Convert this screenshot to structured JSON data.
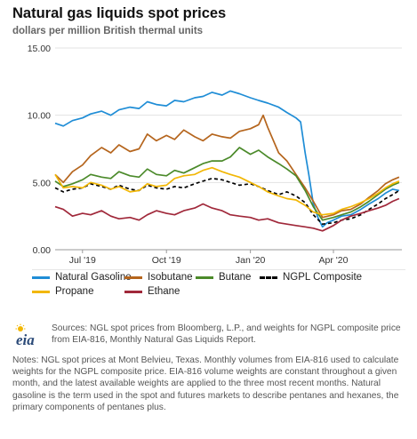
{
  "title": "Natural gas liquids spot prices",
  "subtitle": "dollars per million British thermal units",
  "chart_data": {
    "type": "line",
    "ylim": [
      0,
      15
    ],
    "yticks": [
      "0.00",
      "5.00",
      "10.00",
      "15.00"
    ],
    "xticks": [
      {
        "label": "Jul '19",
        "date": "2019-07-01"
      },
      {
        "label": "Oct '19",
        "date": "2019-10-01"
      },
      {
        "label": "Jan '20",
        "date": "2020-01-01"
      },
      {
        "label": "Apr '20",
        "date": "2020-04-01"
      }
    ],
    "xrange": [
      "2019-06-01",
      "2020-06-15"
    ],
    "grid": "horizontal",
    "legend_position": "bottom",
    "series": [
      {
        "name": "Natural Gasoline",
        "color": "#1f8dd6",
        "dash": false,
        "points": [
          [
            "2019-06-01",
            9.4
          ],
          [
            "2019-06-10",
            9.2
          ],
          [
            "2019-06-20",
            9.6
          ],
          [
            "2019-07-01",
            9.8
          ],
          [
            "2019-07-10",
            10.1
          ],
          [
            "2019-07-22",
            10.3
          ],
          [
            "2019-08-01",
            10.0
          ],
          [
            "2019-08-10",
            10.4
          ],
          [
            "2019-08-22",
            10.6
          ],
          [
            "2019-09-01",
            10.5
          ],
          [
            "2019-09-10",
            11.0
          ],
          [
            "2019-09-20",
            10.8
          ],
          [
            "2019-10-01",
            10.7
          ],
          [
            "2019-10-10",
            11.1
          ],
          [
            "2019-10-20",
            11.0
          ],
          [
            "2019-11-01",
            11.3
          ],
          [
            "2019-11-10",
            11.4
          ],
          [
            "2019-11-20",
            11.7
          ],
          [
            "2019-12-01",
            11.5
          ],
          [
            "2019-12-10",
            11.8
          ],
          [
            "2019-12-20",
            11.6
          ],
          [
            "2020-01-01",
            11.3
          ],
          [
            "2020-01-10",
            11.1
          ],
          [
            "2020-01-20",
            10.9
          ],
          [
            "2020-02-01",
            10.6
          ],
          [
            "2020-02-10",
            10.2
          ],
          [
            "2020-02-20",
            9.8
          ],
          [
            "2020-02-25",
            9.5
          ],
          [
            "2020-03-01",
            7.2
          ],
          [
            "2020-03-05",
            5.6
          ],
          [
            "2020-03-10",
            3.4
          ],
          [
            "2020-03-15",
            2.4
          ],
          [
            "2020-03-20",
            1.7
          ],
          [
            "2020-03-25",
            2.0
          ],
          [
            "2020-04-01",
            2.2
          ],
          [
            "2020-04-10",
            2.5
          ],
          [
            "2020-04-20",
            2.6
          ],
          [
            "2020-05-01",
            3.0
          ],
          [
            "2020-05-10",
            3.4
          ],
          [
            "2020-05-20",
            3.8
          ],
          [
            "2020-05-28",
            4.2
          ],
          [
            "2020-06-05",
            4.5
          ],
          [
            "2020-06-12",
            4.4
          ]
        ]
      },
      {
        "name": "Isobutane",
        "color": "#b5651d",
        "dash": false,
        "points": [
          [
            "2019-06-01",
            5.6
          ],
          [
            "2019-06-10",
            5.0
          ],
          [
            "2019-06-20",
            5.8
          ],
          [
            "2019-07-01",
            6.3
          ],
          [
            "2019-07-10",
            7.0
          ],
          [
            "2019-07-22",
            7.6
          ],
          [
            "2019-08-01",
            7.2
          ],
          [
            "2019-08-10",
            7.8
          ],
          [
            "2019-08-22",
            7.3
          ],
          [
            "2019-09-01",
            7.5
          ],
          [
            "2019-09-10",
            8.6
          ],
          [
            "2019-09-20",
            8.1
          ],
          [
            "2019-10-01",
            8.5
          ],
          [
            "2019-10-10",
            8.2
          ],
          [
            "2019-10-20",
            8.9
          ],
          [
            "2019-11-01",
            8.4
          ],
          [
            "2019-11-10",
            8.1
          ],
          [
            "2019-11-20",
            8.6
          ],
          [
            "2019-12-01",
            8.4
          ],
          [
            "2019-12-10",
            8.3
          ],
          [
            "2019-12-20",
            8.8
          ],
          [
            "2020-01-01",
            9.0
          ],
          [
            "2020-01-10",
            9.3
          ],
          [
            "2020-01-15",
            10.0
          ],
          [
            "2020-01-20",
            9.1
          ],
          [
            "2020-02-01",
            7.2
          ],
          [
            "2020-02-10",
            6.6
          ],
          [
            "2020-02-20",
            5.6
          ],
          [
            "2020-03-01",
            4.6
          ],
          [
            "2020-03-10",
            3.6
          ],
          [
            "2020-03-20",
            2.4
          ],
          [
            "2020-04-01",
            2.6
          ],
          [
            "2020-04-10",
            2.9
          ],
          [
            "2020-04-20",
            3.0
          ],
          [
            "2020-05-01",
            3.4
          ],
          [
            "2020-05-10",
            3.9
          ],
          [
            "2020-05-20",
            4.4
          ],
          [
            "2020-05-28",
            4.9
          ],
          [
            "2020-06-05",
            5.2
          ],
          [
            "2020-06-12",
            5.4
          ]
        ]
      },
      {
        "name": "Butane",
        "color": "#4b8a2a",
        "dash": false,
        "points": [
          [
            "2019-06-01",
            5.1
          ],
          [
            "2019-06-10",
            4.7
          ],
          [
            "2019-06-20",
            4.9
          ],
          [
            "2019-07-01",
            5.2
          ],
          [
            "2019-07-10",
            5.6
          ],
          [
            "2019-07-22",
            5.4
          ],
          [
            "2019-08-01",
            5.3
          ],
          [
            "2019-08-10",
            5.8
          ],
          [
            "2019-08-22",
            5.5
          ],
          [
            "2019-09-01",
            5.4
          ],
          [
            "2019-09-10",
            6.0
          ],
          [
            "2019-09-20",
            5.6
          ],
          [
            "2019-10-01",
            5.5
          ],
          [
            "2019-10-10",
            5.9
          ],
          [
            "2019-10-20",
            5.7
          ],
          [
            "2019-11-01",
            6.1
          ],
          [
            "2019-11-10",
            6.4
          ],
          [
            "2019-11-20",
            6.6
          ],
          [
            "2019-12-01",
            6.6
          ],
          [
            "2019-12-10",
            6.9
          ],
          [
            "2019-12-20",
            7.6
          ],
          [
            "2020-01-01",
            7.1
          ],
          [
            "2020-01-10",
            7.4
          ],
          [
            "2020-01-20",
            6.9
          ],
          [
            "2020-02-01",
            6.4
          ],
          [
            "2020-02-10",
            6.0
          ],
          [
            "2020-02-20",
            5.5
          ],
          [
            "2020-03-01",
            4.4
          ],
          [
            "2020-03-10",
            3.2
          ],
          [
            "2020-03-20",
            2.2
          ],
          [
            "2020-04-01",
            2.4
          ],
          [
            "2020-04-10",
            2.6
          ],
          [
            "2020-04-20",
            2.8
          ],
          [
            "2020-05-01",
            3.2
          ],
          [
            "2020-05-10",
            3.6
          ],
          [
            "2020-05-20",
            4.1
          ],
          [
            "2020-05-28",
            4.5
          ],
          [
            "2020-06-05",
            4.8
          ],
          [
            "2020-06-12",
            5.0
          ]
        ]
      },
      {
        "name": "NGPL Composite",
        "color": "#000000",
        "dash": true,
        "points": [
          [
            "2019-06-01",
            4.6
          ],
          [
            "2019-06-10",
            4.3
          ],
          [
            "2019-06-20",
            4.5
          ],
          [
            "2019-07-01",
            4.6
          ],
          [
            "2019-07-10",
            4.9
          ],
          [
            "2019-07-22",
            4.7
          ],
          [
            "2019-08-01",
            4.5
          ],
          [
            "2019-08-10",
            4.8
          ],
          [
            "2019-08-22",
            4.5
          ],
          [
            "2019-09-01",
            4.4
          ],
          [
            "2019-09-10",
            4.8
          ],
          [
            "2019-09-20",
            4.6
          ],
          [
            "2019-10-01",
            4.5
          ],
          [
            "2019-10-10",
            4.7
          ],
          [
            "2019-10-20",
            4.6
          ],
          [
            "2019-11-01",
            4.9
          ],
          [
            "2019-11-10",
            5.1
          ],
          [
            "2019-11-20",
            5.3
          ],
          [
            "2019-12-01",
            5.2
          ],
          [
            "2019-12-10",
            5.0
          ],
          [
            "2019-12-20",
            4.8
          ],
          [
            "2020-01-01",
            4.9
          ],
          [
            "2020-01-10",
            4.7
          ],
          [
            "2020-01-20",
            4.4
          ],
          [
            "2020-02-01",
            4.1
          ],
          [
            "2020-02-10",
            4.3
          ],
          [
            "2020-02-20",
            4.0
          ],
          [
            "2020-03-01",
            3.5
          ],
          [
            "2020-03-10",
            2.6
          ],
          [
            "2020-03-20",
            1.9
          ],
          [
            "2020-04-01",
            2.0
          ],
          [
            "2020-04-10",
            2.2
          ],
          [
            "2020-04-20",
            2.3
          ],
          [
            "2020-05-01",
            2.6
          ],
          [
            "2020-05-10",
            3.0
          ],
          [
            "2020-05-20",
            3.4
          ],
          [
            "2020-05-28",
            3.8
          ],
          [
            "2020-06-05",
            4.1
          ],
          [
            "2020-06-12",
            4.4
          ]
        ]
      },
      {
        "name": "Propane",
        "color": "#f2b705",
        "dash": false,
        "points": [
          [
            "2019-06-01",
            5.6
          ],
          [
            "2019-06-10",
            4.6
          ],
          [
            "2019-06-20",
            4.7
          ],
          [
            "2019-07-01",
            4.6
          ],
          [
            "2019-07-10",
            5.0
          ],
          [
            "2019-07-22",
            4.8
          ],
          [
            "2019-08-01",
            4.5
          ],
          [
            "2019-08-10",
            4.7
          ],
          [
            "2019-08-22",
            4.3
          ],
          [
            "2019-09-01",
            4.4
          ],
          [
            "2019-09-10",
            4.9
          ],
          [
            "2019-09-20",
            4.7
          ],
          [
            "2019-10-01",
            4.8
          ],
          [
            "2019-10-10",
            5.3
          ],
          [
            "2019-10-20",
            5.5
          ],
          [
            "2019-11-01",
            5.6
          ],
          [
            "2019-11-10",
            5.9
          ],
          [
            "2019-11-20",
            6.1
          ],
          [
            "2019-12-01",
            5.8
          ],
          [
            "2019-12-10",
            5.6
          ],
          [
            "2019-12-20",
            5.4
          ],
          [
            "2020-01-01",
            5.0
          ],
          [
            "2020-01-10",
            4.7
          ],
          [
            "2020-01-20",
            4.3
          ],
          [
            "2020-02-01",
            4.0
          ],
          [
            "2020-02-10",
            3.8
          ],
          [
            "2020-02-20",
            3.7
          ],
          [
            "2020-03-01",
            3.3
          ],
          [
            "2020-03-10",
            2.8
          ],
          [
            "2020-03-20",
            2.6
          ],
          [
            "2020-04-01",
            2.7
          ],
          [
            "2020-04-10",
            3.0
          ],
          [
            "2020-04-20",
            3.2
          ],
          [
            "2020-05-01",
            3.5
          ],
          [
            "2020-05-10",
            3.8
          ],
          [
            "2020-05-20",
            4.2
          ],
          [
            "2020-05-28",
            4.6
          ],
          [
            "2020-06-05",
            4.9
          ],
          [
            "2020-06-12",
            5.1
          ]
        ]
      },
      {
        "name": "Ethane",
        "color": "#a0283a",
        "dash": false,
        "points": [
          [
            "2019-06-01",
            3.2
          ],
          [
            "2019-06-10",
            3.0
          ],
          [
            "2019-06-20",
            2.5
          ],
          [
            "2019-07-01",
            2.7
          ],
          [
            "2019-07-10",
            2.6
          ],
          [
            "2019-07-22",
            2.9
          ],
          [
            "2019-08-01",
            2.5
          ],
          [
            "2019-08-10",
            2.3
          ],
          [
            "2019-08-22",
            2.4
          ],
          [
            "2019-09-01",
            2.2
          ],
          [
            "2019-09-10",
            2.6
          ],
          [
            "2019-09-20",
            2.9
          ],
          [
            "2019-10-01",
            2.7
          ],
          [
            "2019-10-10",
            2.6
          ],
          [
            "2019-10-20",
            2.9
          ],
          [
            "2019-11-01",
            3.1
          ],
          [
            "2019-11-10",
            3.4
          ],
          [
            "2019-11-20",
            3.1
          ],
          [
            "2019-12-01",
            2.9
          ],
          [
            "2019-12-10",
            2.6
          ],
          [
            "2019-12-20",
            2.5
          ],
          [
            "2020-01-01",
            2.4
          ],
          [
            "2020-01-10",
            2.2
          ],
          [
            "2020-01-20",
            2.3
          ],
          [
            "2020-02-01",
            2.0
          ],
          [
            "2020-02-10",
            1.9
          ],
          [
            "2020-02-20",
            1.8
          ],
          [
            "2020-03-01",
            1.7
          ],
          [
            "2020-03-10",
            1.6
          ],
          [
            "2020-03-20",
            1.4
          ],
          [
            "2020-04-01",
            1.8
          ],
          [
            "2020-04-10",
            2.2
          ],
          [
            "2020-04-20",
            2.5
          ],
          [
            "2020-05-01",
            2.7
          ],
          [
            "2020-05-10",
            2.9
          ],
          [
            "2020-05-20",
            3.1
          ],
          [
            "2020-05-28",
            3.3
          ],
          [
            "2020-06-05",
            3.6
          ],
          [
            "2020-06-12",
            3.8
          ]
        ]
      }
    ]
  },
  "footer": {
    "logo_text": "eia",
    "sources": "Sources: NGL spot prices from Bloomberg, L.P., and weights for NGPL composite price from EIA-816, Monthly Natural Gas Liquids Report.",
    "notes": "Notes: NGL spot prices at Mont Belvieu, Texas. Monthly volumes from EIA-816 used to calculate weights for the NGPL composite price. EIA-816 volume weights are constant throughout a given month, and the latest available weights are applied to the three most recent months. Natural gasoline is the term used in the spot and futures markets to describe pentanes and hexanes, the primary components of pentanes plus."
  }
}
